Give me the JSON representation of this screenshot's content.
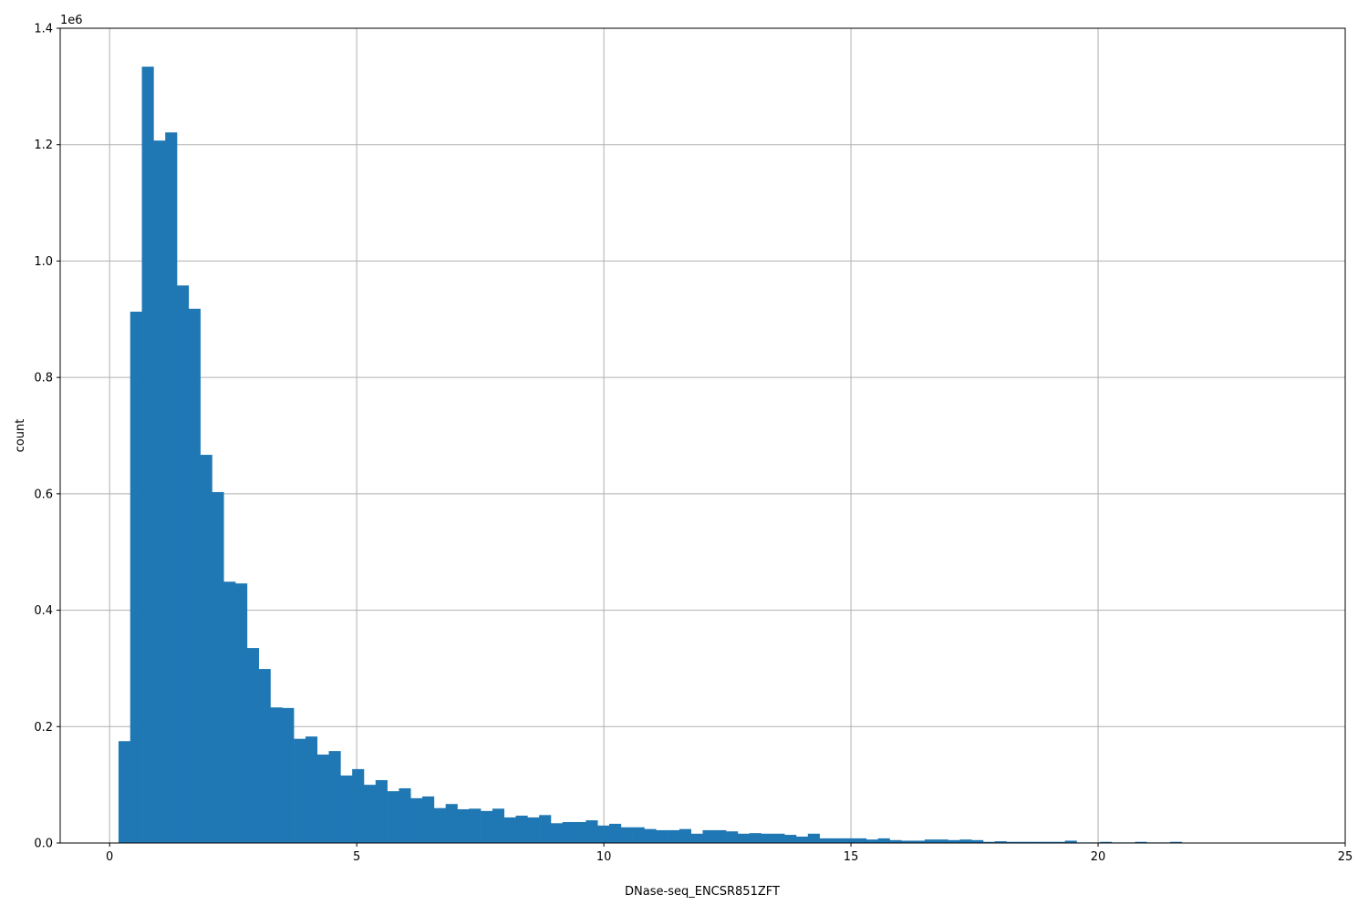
{
  "chart_data": {
    "type": "bar",
    "subtype": "histogram",
    "title": "",
    "xlabel": "DNase-seq_ENCSR851ZFT",
    "ylabel": "count",
    "y_offset_label": "1e6",
    "xlim": [
      -1,
      25
    ],
    "ylim": [
      0,
      1400000
    ],
    "xticks": [
      0,
      5,
      10,
      15,
      20,
      25
    ],
    "xtick_labels": [
      "0",
      "5",
      "10",
      "15",
      "20",
      "25"
    ],
    "yticks": [
      0,
      200000,
      400000,
      600000,
      800000,
      1000000,
      1200000,
      1400000
    ],
    "ytick_labels": [
      "0.0",
      "0.2",
      "0.4",
      "0.6",
      "0.8",
      "1.0",
      "1.2",
      "1.4"
    ],
    "grid": true,
    "color": "#1f77b4",
    "bin_start": 0.18,
    "bin_end": 23.82,
    "bin_count": 100,
    "values": [
      175000,
      913000,
      1334000,
      1207000,
      1221000,
      958000,
      918000,
      667000,
      603000,
      449000,
      446000,
      335000,
      299000,
      233000,
      232000,
      179000,
      183000,
      152000,
      158000,
      116000,
      127000,
      100000,
      108000,
      89000,
      94000,
      77000,
      80000,
      60000,
      67000,
      58000,
      59000,
      55000,
      59000,
      44000,
      47000,
      44000,
      48000,
      34000,
      36000,
      36000,
      39000,
      30000,
      33000,
      27000,
      27000,
      24000,
      22000,
      22000,
      24000,
      16000,
      22000,
      22000,
      20000,
      16000,
      17000,
      16000,
      16000,
      14000,
      11000,
      16000,
      8000,
      8000,
      8000,
      8000,
      6000,
      8000,
      5000,
      4000,
      4000,
      6000,
      6000,
      5000,
      6000,
      5000,
      2000,
      3000,
      2000,
      2000,
      2000,
      2000,
      2000,
      4000,
      1000,
      1000,
      2000,
      1000,
      1000,
      2000,
      1000,
      1000,
      2000,
      500,
      300,
      200,
      200,
      100,
      100,
      100,
      100,
      100
    ]
  }
}
